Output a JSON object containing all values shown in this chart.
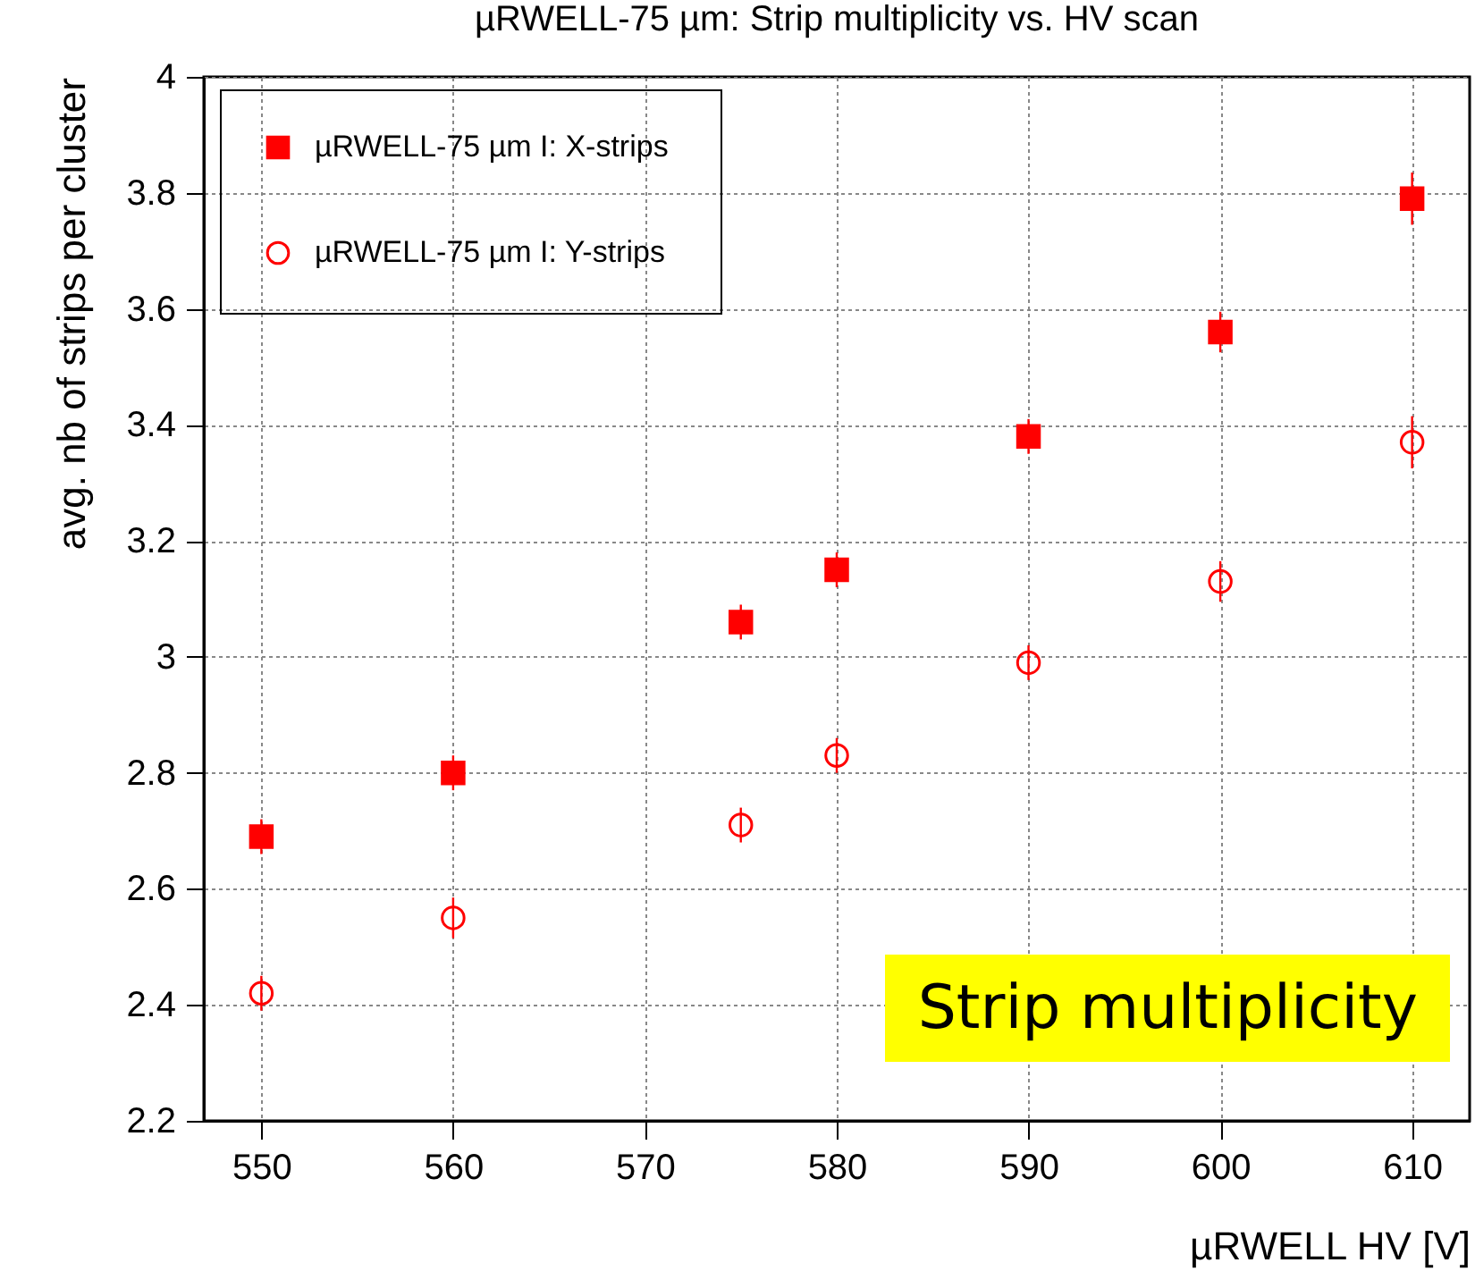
{
  "chart_data": {
    "type": "scatter",
    "title": "µRWELL-75  µm: Strip multiplicity vs. HV scan",
    "xlabel": "µRWELL HV [V]",
    "ylabel": "avg. nb of strips per cluster",
    "x": [
      550,
      560,
      575,
      580,
      590,
      600,
      610
    ],
    "series": [
      {
        "name": "µRWELL-75  µm I: X-strips",
        "color": "#ff0000",
        "marker": "square",
        "values": [
          2.69,
          2.8,
          3.06,
          3.15,
          3.38,
          3.56,
          3.79
        ],
        "errors": [
          0.03,
          0.03,
          0.03,
          0.03,
          0.03,
          0.035,
          0.045
        ]
      },
      {
        "name": "µRWELL-75  µm I: Y-strips",
        "color": "#ff0000",
        "marker": "circle",
        "values": [
          2.42,
          2.55,
          2.71,
          2.83,
          2.99,
          3.13,
          3.37
        ],
        "errors": [
          0.03,
          0.035,
          0.03,
          0.03,
          0.03,
          0.035,
          0.045
        ]
      }
    ],
    "xlim": [
      547,
      613
    ],
    "ylim": [
      2.2,
      4
    ],
    "xticks": [
      550,
      560,
      570,
      580,
      590,
      600,
      610
    ],
    "yticks": [
      2.2,
      2.4,
      2.6,
      2.8,
      3,
      3.2,
      3.4,
      3.6,
      3.8,
      4
    ],
    "grid": true,
    "legend": "top left",
    "annotations": [
      "Strip multiplicity"
    ]
  }
}
